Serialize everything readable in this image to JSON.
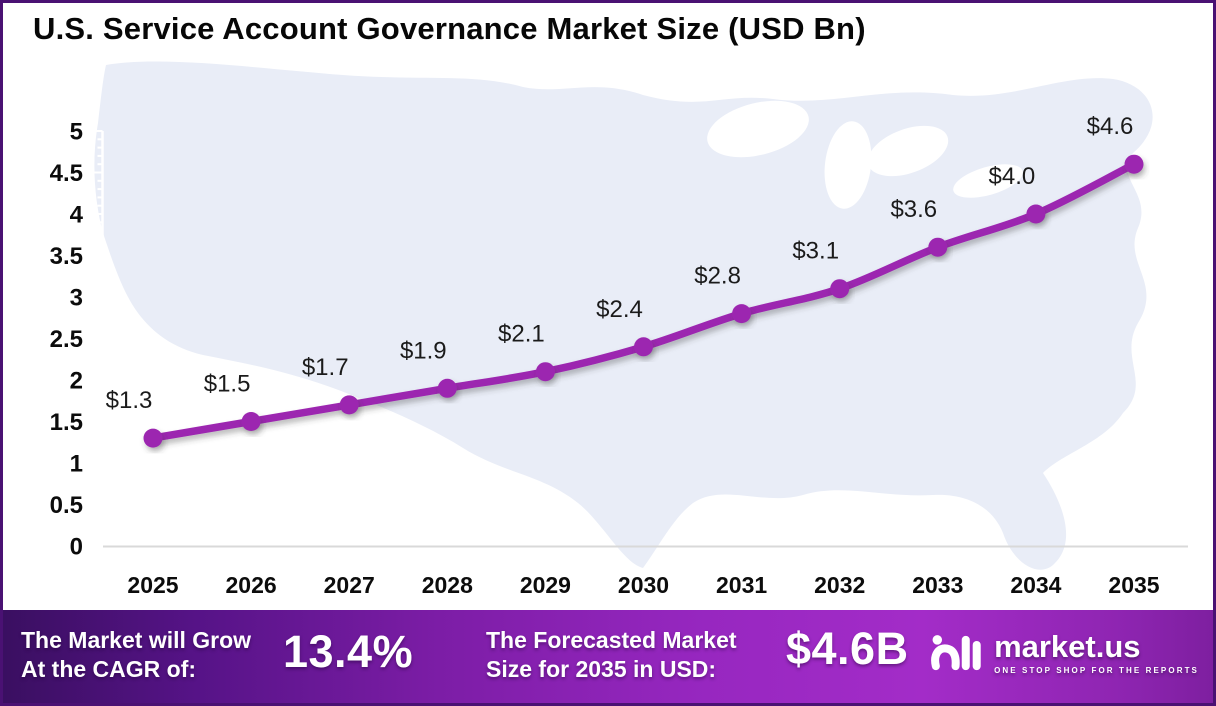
{
  "title": "U.S. Service Account Governance Market Size (USD Bn)",
  "chart_data": {
    "type": "line",
    "title": "U.S. Service Account Governance Market Size (USD Bn)",
    "categories": [
      "2025",
      "2026",
      "2027",
      "2028",
      "2029",
      "2030",
      "2031",
      "2032",
      "2033",
      "2034",
      "2035"
    ],
    "series": [
      {
        "name": "U.S. Service Account Governance Market Size (USD Bn)",
        "values": [
          1.3,
          1.5,
          1.7,
          1.9,
          2.1,
          2.4,
          2.8,
          3.1,
          3.6,
          4.0,
          4.6
        ]
      }
    ],
    "data_labels": [
      "$1.3",
      "$1.5",
      "$1.7",
      "$1.9",
      "$2.1",
      "$2.4",
      "$2.8",
      "$3.1",
      "$3.6",
      "$4.0",
      "$4.6"
    ],
    "ylim": [
      0,
      5
    ],
    "ytick_step": 0.5,
    "yticks": [
      "0",
      "0.5",
      "1",
      "1.5",
      "2",
      "2.5",
      "3",
      "3.5",
      "4",
      "4.5",
      "5"
    ],
    "grid": false,
    "legend": false,
    "line_color": "#9C27B0",
    "marker": "circle",
    "background": "light U.S. map silhouette"
  },
  "footer": {
    "cagr_label_line1": "The Market will Grow",
    "cagr_label_line2": "At the CAGR of:",
    "cagr_value": "13.4%",
    "forecast_label_line1": "The Forecasted Market",
    "forecast_label_line2": "Size for 2035 in USD:",
    "forecast_value": "$4.6B",
    "logo_text": "market.us",
    "logo_tagline": "ONE STOP SHOP FOR THE REPORTS"
  },
  "colors": {
    "line": "#9C27B0",
    "map_fill": "#E9EDF7",
    "frame_border": "#4A1173",
    "axis_line": "#D9D9D9",
    "footer_gradient_start": "#3A0F61",
    "footer_gradient_bright": "#A32CC8",
    "footer_gradient_end": "#7E1FA0"
  }
}
